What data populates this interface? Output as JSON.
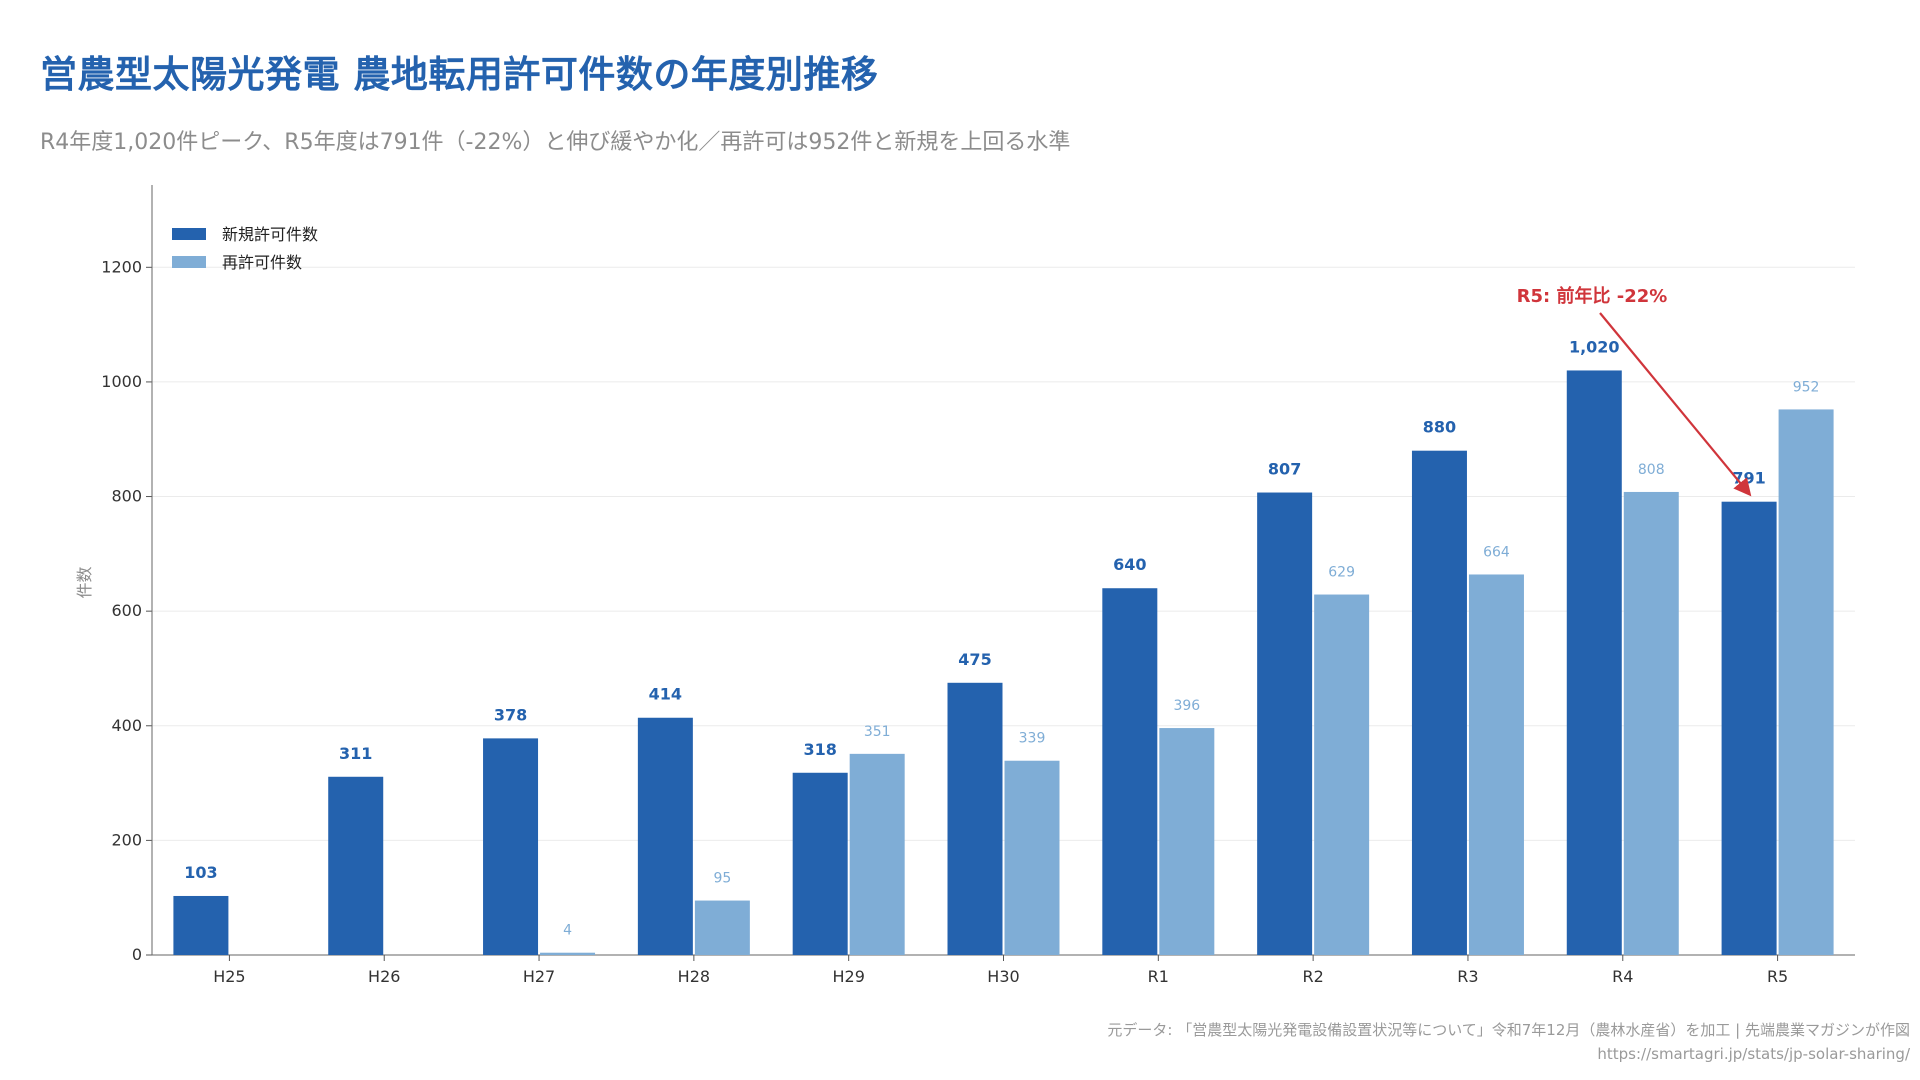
{
  "page": {
    "title": "営農型太陽光発電 農地転用許可件数の年度別推移",
    "subtitle": "R4年度1,020件ピーク、R5年度は791件（-22%）と伸び緩やか化／再許可は952件と新規を上回る水準",
    "source": "元データ: 「営農型太陽光発電設備設置状況等について」令和7年12月（農林水産省）を加工 | 先端農業マガジンが作図",
    "url": "https://smartagri.jp/stats/jp-solar-sharing/"
  },
  "chart_data": {
    "type": "bar",
    "categories": [
      "H25",
      "H26",
      "H27",
      "H28",
      "H29",
      "H30",
      "R1",
      "R2",
      "R3",
      "R4",
      "R5"
    ],
    "series": [
      {
        "name": "新規許可件数",
        "values": [
          103,
          311,
          378,
          414,
          318,
          475,
          640,
          807,
          880,
          1020,
          791
        ],
        "labels": [
          "103",
          "311",
          "378",
          "414",
          "318",
          "475",
          "640",
          "807",
          "880",
          "1,020",
          "791"
        ],
        "color": "#2462AE"
      },
      {
        "name": "再許可件数",
        "values": [
          null,
          null,
          4,
          95,
          351,
          339,
          396,
          629,
          664,
          808,
          952
        ],
        "labels": [
          "",
          "",
          "4",
          "95",
          "351",
          "339",
          "396",
          "629",
          "664",
          "808",
          "952"
        ],
        "color": "#7FADD6"
      }
    ],
    "ylabel": "件数",
    "ylim": [
      0,
      1300
    ],
    "yticks": [
      0,
      200,
      400,
      600,
      800,
      1000,
      1200
    ],
    "grid": true,
    "legend": "top-left",
    "annotation": {
      "text": "R5: 前年比 -22%",
      "target_category": "R5",
      "target_value": 791,
      "color": "#D0353B"
    }
  }
}
